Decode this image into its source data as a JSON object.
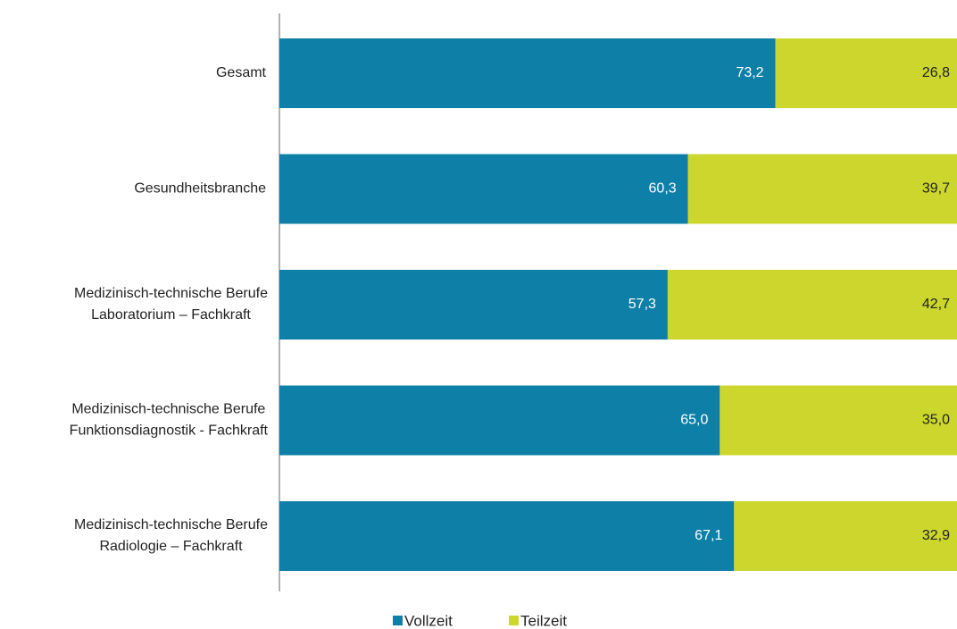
{
  "chart_data": {
    "type": "stacked_barh",
    "categories": [
      "Gesamt",
      "Gesundheitsbranche",
      "Medizinisch-technische Berufe\nLaboratorium – Fachkraft",
      "Medizinisch-technische Berufe\nFunktionsdiagnostik - Fachkraft",
      "Medizinisch-technische Berufe\nRadiologie – Fachkraft"
    ],
    "series": [
      {
        "name": "Vollzeit",
        "color": "#0e7fa6",
        "values": [
          73.2,
          60.3,
          57.3,
          65.0,
          67.1
        ],
        "value_labels": [
          "73,2",
          "60,3",
          "57,3",
          "65,0",
          "67,1"
        ]
      },
      {
        "name": "Teilzeit",
        "color": "#cdd62c",
        "values": [
          26.8,
          39.7,
          42.7,
          35.0,
          32.9
        ],
        "value_labels": [
          "26,8",
          "39,7",
          "42,7",
          "35,0",
          "32,9"
        ]
      }
    ],
    "xlim": [
      0,
      100
    ],
    "legend": "bottom"
  }
}
